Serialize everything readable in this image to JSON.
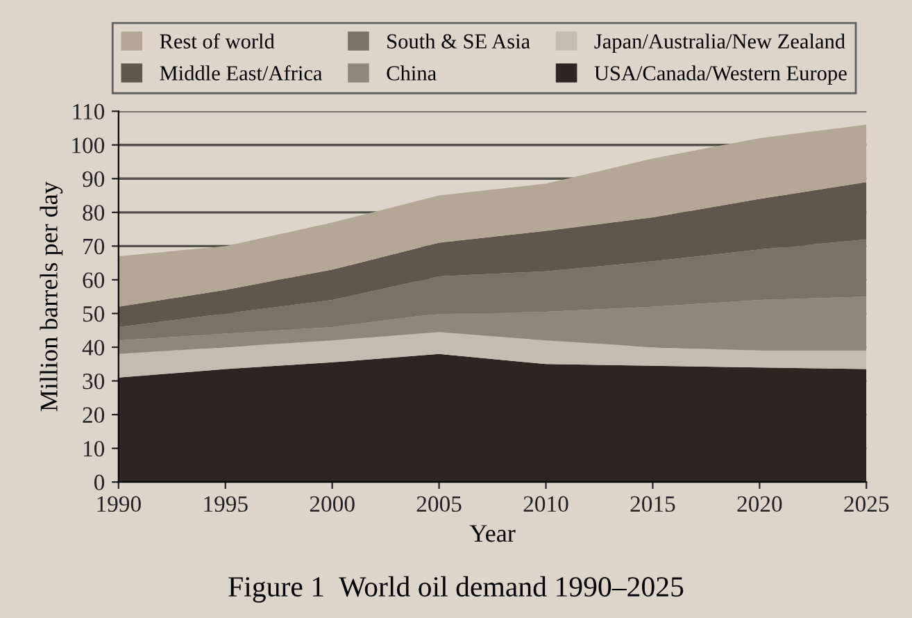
{
  "chart_data": {
    "type": "area",
    "stacked": true,
    "title": "Figure 1  World oil demand 1990–2025",
    "xlabel": "Year",
    "ylabel": "Million barrels per day",
    "x": [
      1990,
      1995,
      2000,
      2005,
      2010,
      2015,
      2020,
      2025
    ],
    "series": [
      {
        "name": "USA/Canada/Western Europe",
        "color": "#2e2420",
        "values": [
          31,
          33.5,
          35.5,
          38,
          35,
          34.5,
          34,
          33.5
        ]
      },
      {
        "name": "Japan/Australia/New Zealand",
        "color": "#c4bcb0",
        "values": [
          7,
          6.5,
          6.5,
          6.5,
          7,
          5.5,
          5,
          5.5
        ]
      },
      {
        "name": "China",
        "color": "#8f877b",
        "values": [
          4,
          4,
          4,
          5.5,
          8.5,
          12,
          15,
          16
        ]
      },
      {
        "name": "South & SE Asia",
        "color": "#7a7266",
        "values": [
          4,
          6,
          8,
          11,
          12,
          13.5,
          15,
          17
        ]
      },
      {
        "name": "Middle East/Africa",
        "color": "#5f574c",
        "values": [
          6,
          7,
          9,
          10,
          12,
          13,
          15,
          17
        ]
      },
      {
        "name": "Rest of world",
        "color": "#b3a893",
        "values": [
          15,
          13,
          14,
          14,
          14,
          17.5,
          18,
          17
        ]
      }
    ],
    "xlim": [
      1990,
      2025
    ],
    "xticks": [
      1990,
      1995,
      2000,
      2005,
      2010,
      2015,
      2020,
      2025
    ],
    "ylim": [
      0,
      110
    ],
    "yticks": [
      0,
      10,
      20,
      30,
      40,
      50,
      60,
      70,
      80,
      90,
      100,
      110
    ],
    "grid": "y",
    "legend": "top"
  }
}
